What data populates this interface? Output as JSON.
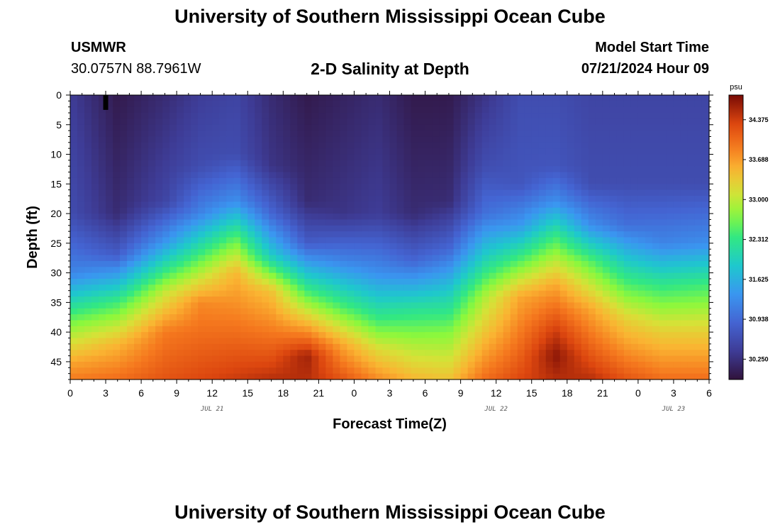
{
  "header": {
    "title": "University of Southern Mississippi Ocean Cube",
    "station": "USMWR",
    "coords": "30.0757N  88.7961W",
    "subtitle": "2-D Salinity at Depth",
    "model_start_label": "Model Start Time",
    "model_start_value": "07/21/2024 Hour 09"
  },
  "footer": {
    "title": "University of Southern Mississippi Ocean Cube"
  },
  "chart_data": {
    "type": "heatmap",
    "title": "2-D Salinity at Depth",
    "xlabel": "Forecast Time(Z)",
    "ylabel": "Depth (ft)",
    "x_range_hours": [
      0,
      54
    ],
    "x_ticks": [
      "0",
      "3",
      "6",
      "9",
      "12",
      "15",
      "18",
      "21",
      "0",
      "3",
      "6",
      "9",
      "12",
      "15",
      "18",
      "21",
      "0",
      "3",
      "6"
    ],
    "date_labels": [
      {
        "label": "JUL 21",
        "hour": 12
      },
      {
        "label": "JUL 22",
        "hour": 36
      },
      {
        "label": "JUL 23",
        "hour": 51
      }
    ],
    "y_range": [
      0,
      48
    ],
    "y_ticks": [
      0,
      5,
      10,
      15,
      20,
      25,
      30,
      35,
      40,
      45
    ],
    "colorbar": {
      "unit": "psu",
      "range": [
        29.9,
        34.8
      ],
      "ticks": [
        "34.375",
        "33.688",
        "33.000",
        "32.312",
        "31.625",
        "30.938",
        "30.250"
      ]
    },
    "marker": {
      "hour": 3,
      "depth_from": 0,
      "depth_to": 2.5
    },
    "profile_times": [
      0,
      4,
      8,
      11,
      14,
      17,
      20,
      23,
      26,
      29,
      32,
      35,
      38,
      41,
      44,
      47,
      50,
      54
    ],
    "profiles": [
      [
        [
          0,
          30.4
        ],
        [
          20,
          30.6
        ],
        [
          30,
          31.2
        ],
        [
          38,
          32.6
        ],
        [
          45,
          33.6
        ],
        [
          48,
          33.9
        ]
      ],
      [
        [
          0,
          30.0
        ],
        [
          20,
          30.2
        ],
        [
          27,
          30.8
        ],
        [
          35,
          32.4
        ],
        [
          42,
          33.5
        ],
        [
          48,
          34.0
        ]
      ],
      [
        [
          0,
          30.2
        ],
        [
          18,
          30.5
        ],
        [
          25,
          31.4
        ],
        [
          33,
          33.0
        ],
        [
          40,
          33.9
        ],
        [
          48,
          34.2
        ]
      ],
      [
        [
          0,
          30.4
        ],
        [
          12,
          30.6
        ],
        [
          20,
          31.2
        ],
        [
          28,
          32.6
        ],
        [
          35,
          33.8
        ],
        [
          48,
          34.3
        ]
      ],
      [
        [
          0,
          30.5
        ],
        [
          10,
          30.6
        ],
        [
          18,
          31.3
        ],
        [
          24,
          32.5
        ],
        [
          30,
          33.5
        ],
        [
          48,
          34.4
        ]
      ],
      [
        [
          0,
          30.2
        ],
        [
          12,
          30.3
        ],
        [
          20,
          30.9
        ],
        [
          27,
          31.9
        ],
        [
          33,
          33.4
        ],
        [
          48,
          34.5
        ]
      ],
      [
        [
          0,
          30.0
        ],
        [
          18,
          30.2
        ],
        [
          25,
          30.8
        ],
        [
          33,
          32.4
        ],
        [
          40,
          33.8
        ],
        [
          44,
          34.6
        ],
        [
          48,
          34.5
        ]
      ],
      [
        [
          0,
          30.1
        ],
        [
          20,
          30.3
        ],
        [
          28,
          31.2
        ],
        [
          36,
          32.5
        ],
        [
          42,
          33.6
        ],
        [
          48,
          34.2
        ]
      ],
      [
        [
          0,
          30.2
        ],
        [
          20,
          30.4
        ],
        [
          30,
          31.3
        ],
        [
          38,
          32.4
        ],
        [
          43,
          33.2
        ],
        [
          48,
          33.8
        ]
      ],
      [
        [
          0,
          30.0
        ],
        [
          20,
          30.2
        ],
        [
          28,
          30.9
        ],
        [
          36,
          32.2
        ],
        [
          42,
          32.9
        ],
        [
          48,
          33.5
        ]
      ],
      [
        [
          0,
          30.0
        ],
        [
          18,
          30.2
        ],
        [
          26,
          30.9
        ],
        [
          34,
          32.0
        ],
        [
          40,
          32.7
        ],
        [
          48,
          33.4
        ]
      ],
      [
        [
          0,
          30.3
        ],
        [
          12,
          30.6
        ],
        [
          20,
          31.0
        ],
        [
          27,
          31.9
        ],
        [
          34,
          32.9
        ],
        [
          48,
          34.0
        ]
      ],
      [
        [
          0,
          30.6
        ],
        [
          15,
          30.7
        ],
        [
          22,
          31.4
        ],
        [
          28,
          32.5
        ],
        [
          34,
          33.6
        ],
        [
          48,
          34.3
        ]
      ],
      [
        [
          0,
          30.6
        ],
        [
          12,
          30.7
        ],
        [
          18,
          31.3
        ],
        [
          24,
          32.4
        ],
        [
          32,
          33.6
        ],
        [
          40,
          34.4
        ],
        [
          44,
          34.7
        ],
        [
          48,
          34.5
        ]
      ],
      [
        [
          0,
          30.5
        ],
        [
          15,
          30.6
        ],
        [
          22,
          31.3
        ],
        [
          28,
          32.5
        ],
        [
          36,
          33.6
        ],
        [
          48,
          34.5
        ]
      ],
      [
        [
          0,
          30.5
        ],
        [
          15,
          30.6
        ],
        [
          22,
          31.0
        ],
        [
          30,
          32.2
        ],
        [
          38,
          33.3
        ],
        [
          48,
          34.2
        ]
      ],
      [
        [
          0,
          30.5
        ],
        [
          15,
          30.6
        ],
        [
          25,
          31.2
        ],
        [
          32,
          32.3
        ],
        [
          40,
          33.3
        ],
        [
          48,
          34.0
        ]
      ],
      [
        [
          0,
          30.5
        ],
        [
          15,
          30.6
        ],
        [
          25,
          31.3
        ],
        [
          32,
          32.4
        ],
        [
          40,
          33.3
        ],
        [
          48,
          34.0
        ]
      ]
    ]
  }
}
